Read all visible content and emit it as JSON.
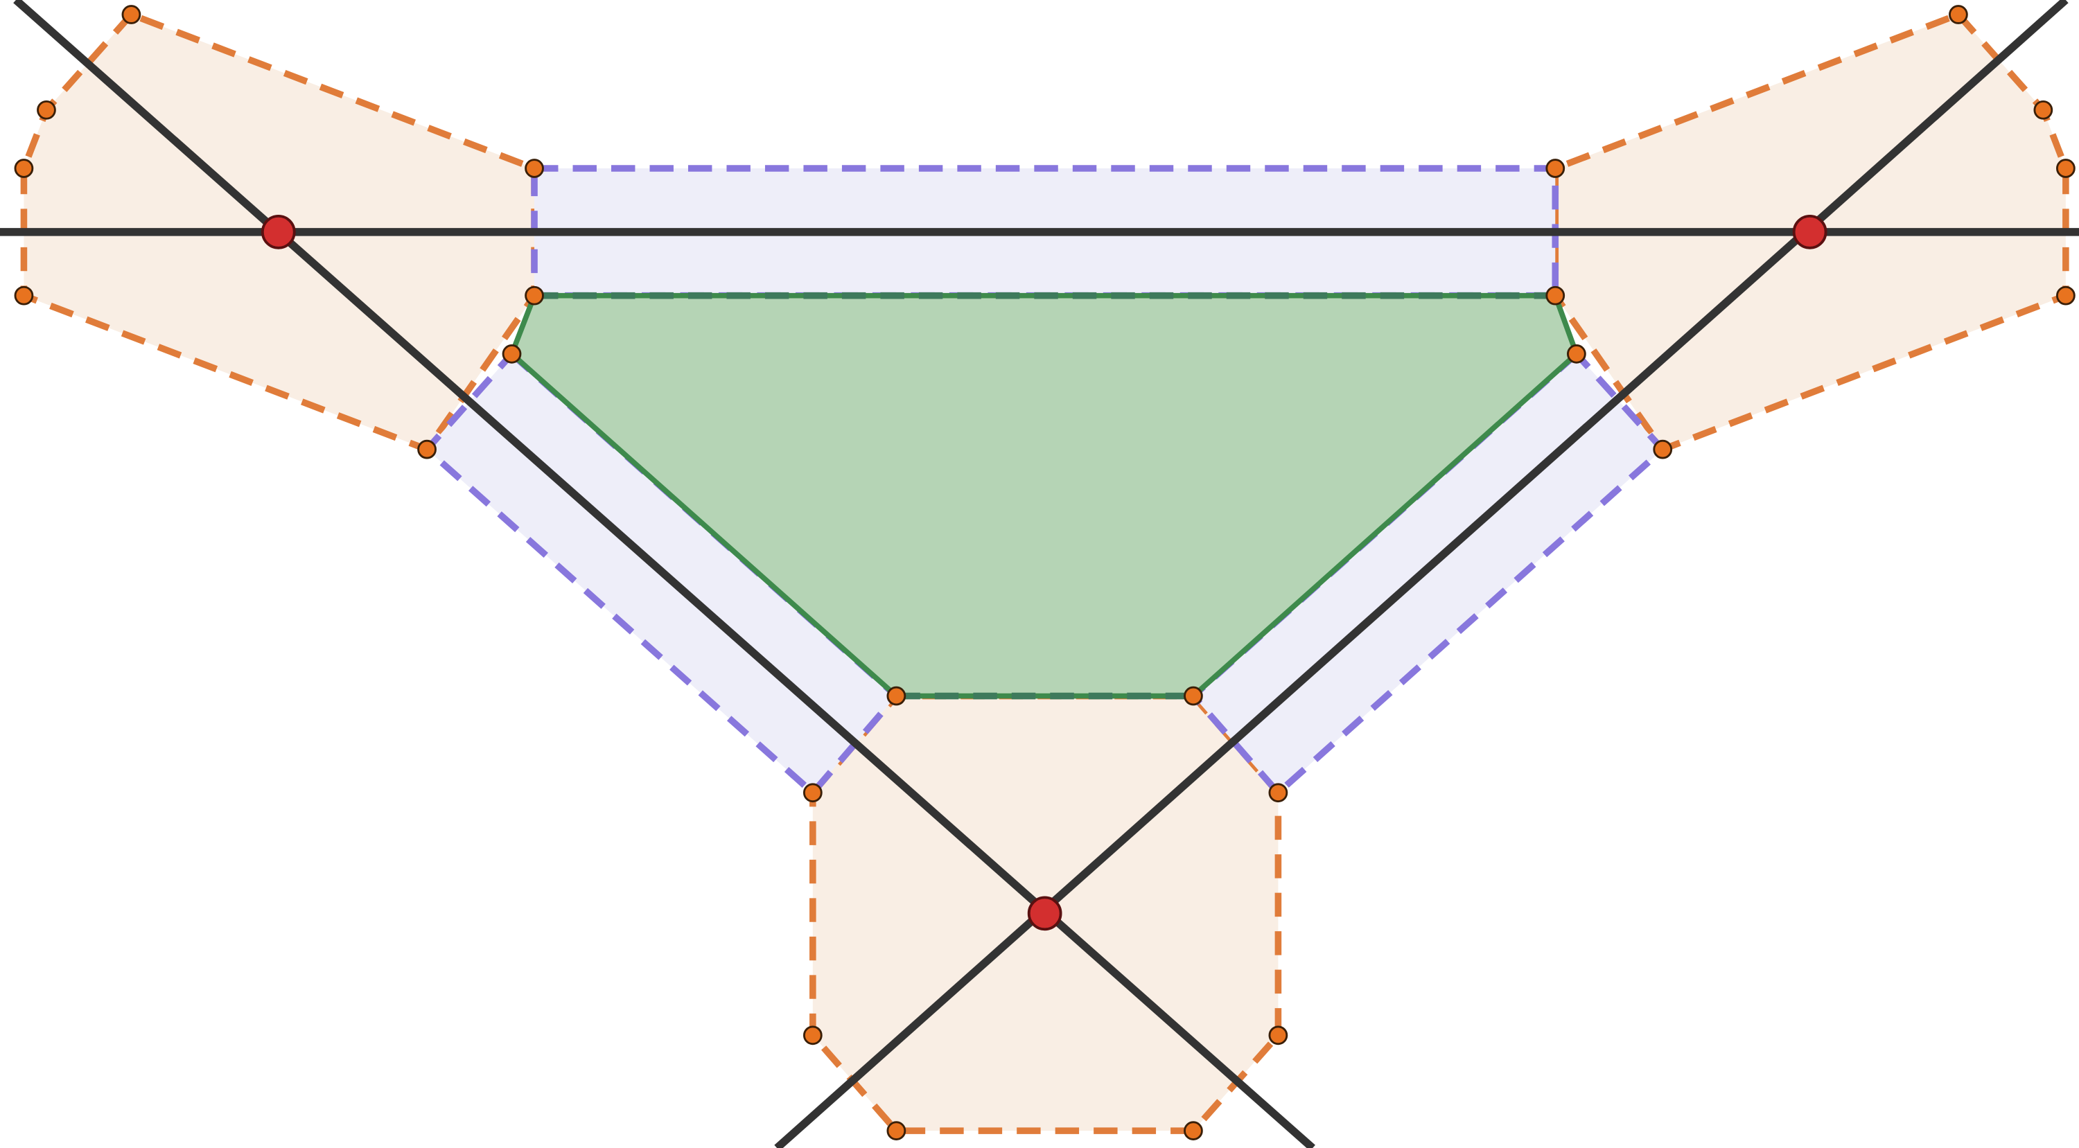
{
  "diagram": {
    "colors": {
      "background": "#ffffff",
      "line": "#333333",
      "intersection_fill": "#d32f2f",
      "intersection_stroke": "#5a1010",
      "vertex_fill": "#e8731f",
      "vertex_stroke": "#3a1f08",
      "orange_region_fill": "#f9eee4",
      "orange_region_stroke": "#e07c3a",
      "purple_strip_fill": "#eeeef9",
      "purple_strip_stroke": "#8877dd",
      "green_region_fill": "#b5d4b5",
      "green_region_stroke": "#3e8a4c"
    },
    "counts": {
      "lines": 3,
      "intersections": 3,
      "orange_regions": 3,
      "purple_strips": 3,
      "green_regions": 1
    }
  }
}
